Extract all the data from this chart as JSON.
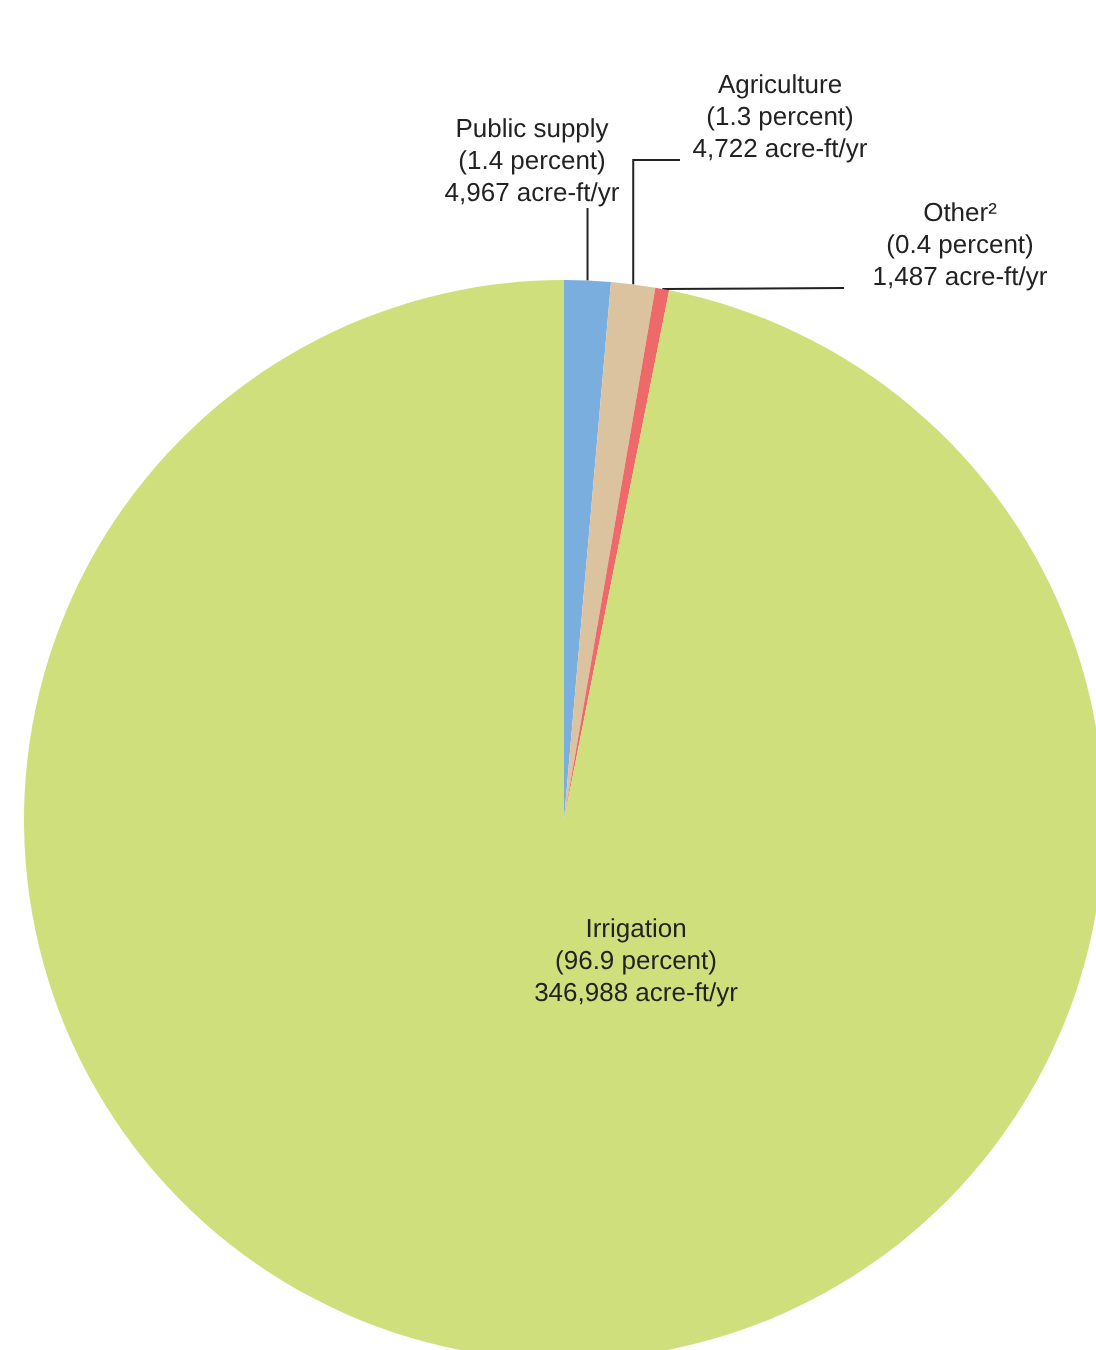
{
  "chart_data": {
    "type": "pie",
    "categories": [
      "Public supply",
      "Agriculture",
      "Other²",
      "Irrigation"
    ],
    "values": [
      4967,
      4722,
      1487,
      346988
    ],
    "value_labels": [
      "(1.4 percent)\n4,967 acre-ft/yr",
      "(1.3 percent)\n4,722 acre-ft/yr",
      "(0.4 percent)\n1,487 acre-ft/yr",
      "(96.9 percent)\n346,988 acre-ft/yr"
    ],
    "colors": [
      "#7aaede",
      "#dcc3a0",
      "#ee6a6a",
      "#cfdf7c"
    ]
  }
}
